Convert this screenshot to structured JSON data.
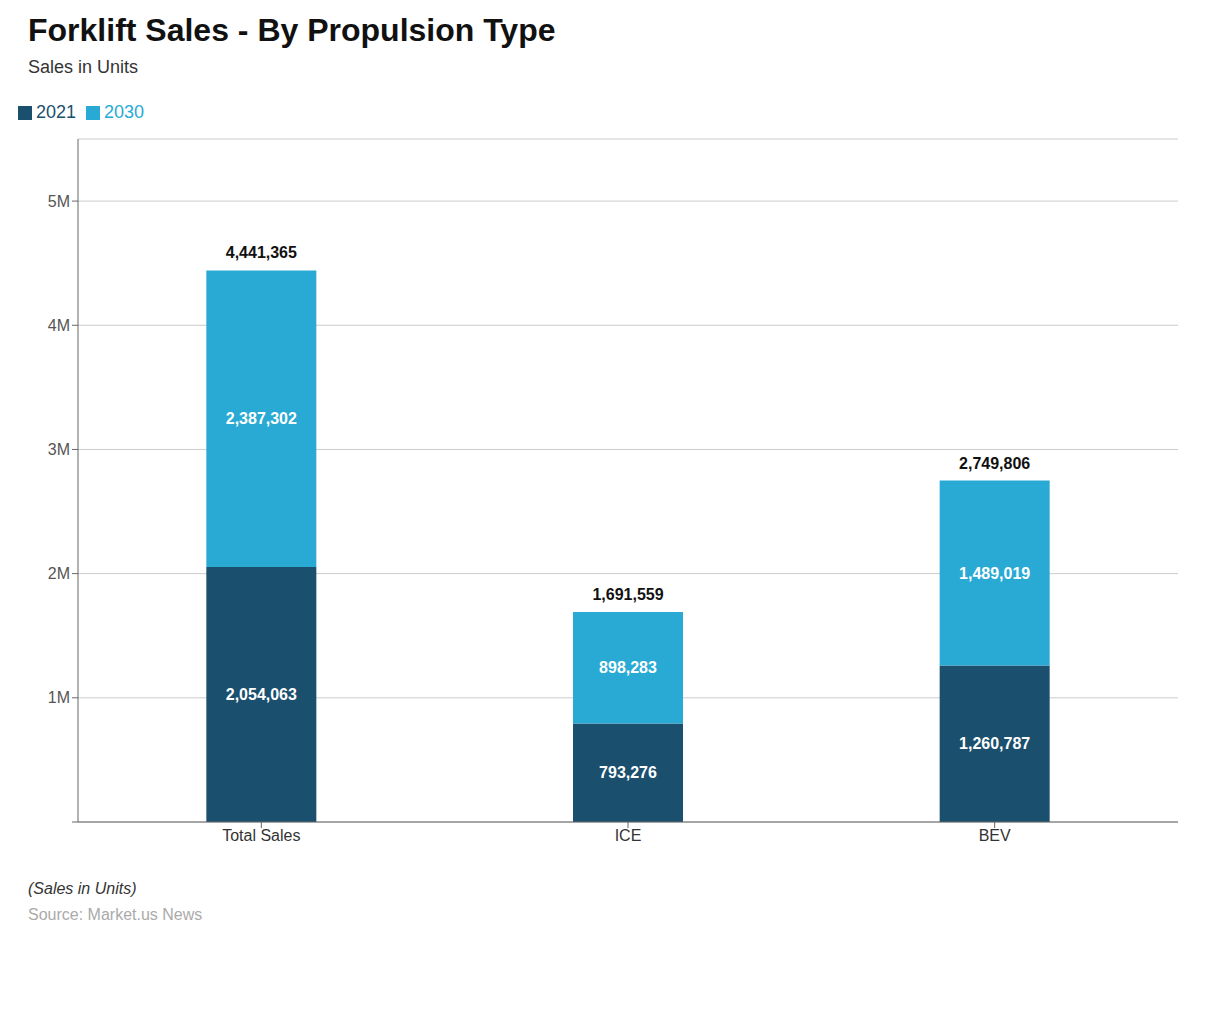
{
  "chart_data": {
    "type": "bar",
    "title": "Forklift Sales - By Propulsion Type",
    "subtitle": "Sales in Units",
    "footer_italic": "(Sales in Units)",
    "footer_source": "Source: Market.us News",
    "categories": [
      "Total Sales",
      "ICE",
      "BEV"
    ],
    "series": [
      {
        "name": "2021",
        "color": "#1a4f6e",
        "values": [
          2054063,
          793276,
          1260787
        ],
        "value_labels": [
          "2,054,063",
          "793,276",
          "1,260,787"
        ]
      },
      {
        "name": "2030",
        "color": "#29aad4",
        "values": [
          2387302,
          898283,
          1489019
        ],
        "value_labels": [
          "2,387,302",
          "898,283",
          "1,489,019"
        ]
      }
    ],
    "totals": [
      4441365,
      1691559,
      2749806
    ],
    "total_labels": [
      "4,441,365",
      "1,691,559",
      "2,749,806"
    ],
    "stacked": true,
    "data_labels": true,
    "ylim": [
      0,
      5500000
    ],
    "yticks": [
      {
        "value": 0,
        "label": ""
      },
      {
        "value": 1000000,
        "label": "1M"
      },
      {
        "value": 2000000,
        "label": "2M"
      },
      {
        "value": 3000000,
        "label": "3M"
      },
      {
        "value": 4000000,
        "label": "4M"
      },
      {
        "value": 5000000,
        "label": "5M"
      }
    ],
    "grid": true,
    "legend": "upper left"
  }
}
